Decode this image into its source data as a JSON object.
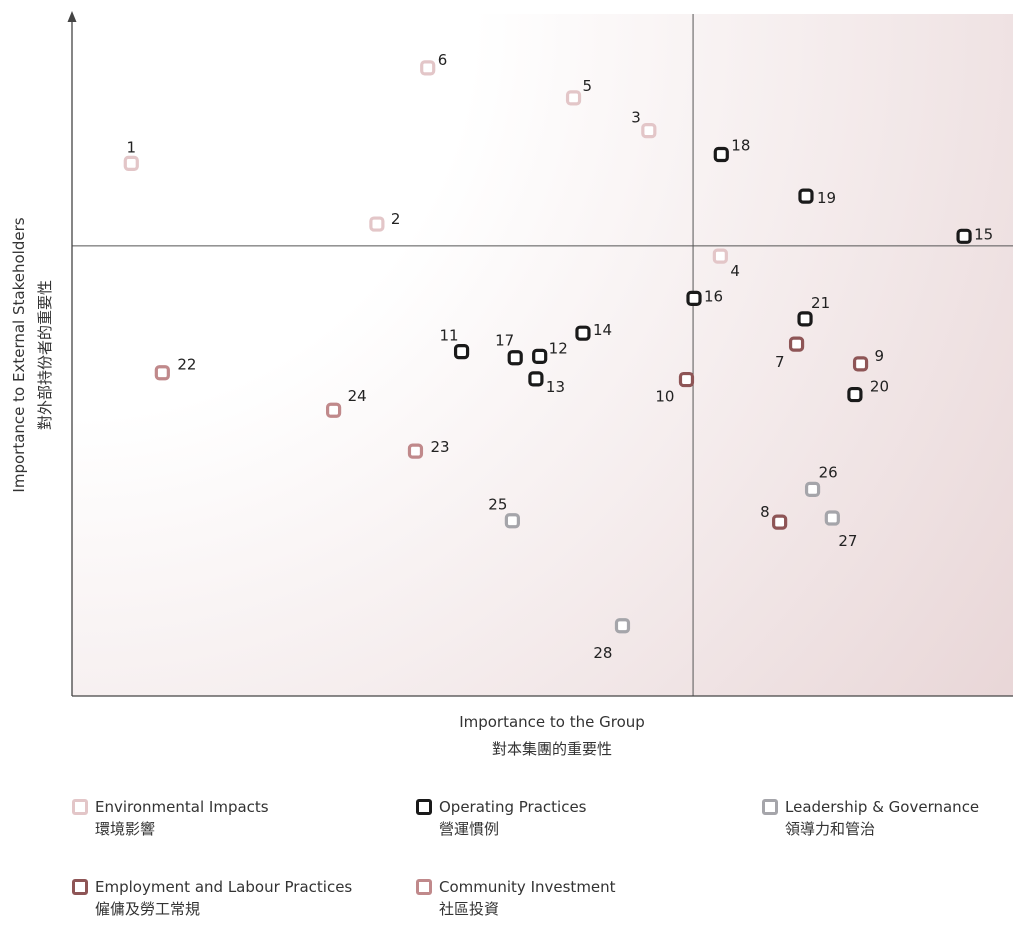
{
  "chart_data": {
    "type": "scatter",
    "xlabel": "Importance to the Group",
    "xlabel_zh": "對本集團的重要性",
    "ylabel": "Importance to External Stakeholders",
    "ylabel_zh": "對外部持份者的重要性",
    "xlim": [
      0,
      100
    ],
    "ylim": [
      0,
      100
    ],
    "quadrant_x": 66,
    "quadrant_y": 66,
    "grid": false,
    "legend_position": "bottom",
    "colors": {
      "environmental": "#e3c6c8",
      "operating": "#1a1a1a",
      "leadership": "#a5a5aa",
      "employment": "#8e5556",
      "community": "#c0898b"
    },
    "series": [
      {
        "id": "environmental",
        "name": "Environmental Impacts",
        "name_zh": "環境影響",
        "color": "#e3c6c8",
        "points": [
          {
            "label": "1",
            "x": 6.3,
            "y": 78.1
          },
          {
            "label": "2",
            "x": 32.4,
            "y": 69.2
          },
          {
            "label": "3",
            "x": 61.3,
            "y": 82.9
          },
          {
            "label": "4",
            "x": 68.9,
            "y": 64.5
          },
          {
            "label": "5",
            "x": 53.3,
            "y": 87.7
          },
          {
            "label": "6",
            "x": 37.8,
            "y": 92.1
          }
        ]
      },
      {
        "id": "operating",
        "name": "Operating Practices",
        "name_zh": "營運慣例",
        "color": "#1a1a1a",
        "points": [
          {
            "label": "11",
            "x": 41.4,
            "y": 50.5
          },
          {
            "label": "12",
            "x": 49.7,
            "y": 49.8
          },
          {
            "label": "13",
            "x": 49.3,
            "y": 46.5
          },
          {
            "label": "14",
            "x": 54.3,
            "y": 53.2
          },
          {
            "label": "15",
            "x": 94.8,
            "y": 67.4
          },
          {
            "label": "16",
            "x": 66.1,
            "y": 58.3
          },
          {
            "label": "17",
            "x": 47.1,
            "y": 49.6
          },
          {
            "label": "18",
            "x": 69.0,
            "y": 79.4
          },
          {
            "label": "19",
            "x": 78.0,
            "y": 73.3
          },
          {
            "label": "20",
            "x": 83.2,
            "y": 44.2
          },
          {
            "label": "21",
            "x": 77.9,
            "y": 55.3
          }
        ]
      },
      {
        "id": "employment",
        "name": "Employment and Labour Practices",
        "name_zh": "僱傭及勞工常規",
        "color": "#8e5556",
        "points": [
          {
            "label": "7",
            "x": 77.0,
            "y": 51.6
          },
          {
            "label": "8",
            "x": 75.2,
            "y": 25.5
          },
          {
            "label": "9",
            "x": 83.8,
            "y": 48.7
          },
          {
            "label": "10",
            "x": 65.3,
            "y": 46.4
          }
        ]
      },
      {
        "id": "community",
        "name": "Community Investment",
        "name_zh": "社區投資",
        "color": "#c0898b",
        "points": [
          {
            "label": "22",
            "x": 9.6,
            "y": 47.4
          },
          {
            "label": "23",
            "x": 36.5,
            "y": 35.9
          },
          {
            "label": "24",
            "x": 27.8,
            "y": 41.9
          }
        ]
      },
      {
        "id": "leadership",
        "name": "Leadership & Governance",
        "name_zh": "領導力和管治",
        "color": "#a5a5aa",
        "points": [
          {
            "label": "25",
            "x": 46.8,
            "y": 25.7
          },
          {
            "label": "26",
            "x": 78.7,
            "y": 30.3
          },
          {
            "label": "27",
            "x": 80.8,
            "y": 26.1
          },
          {
            "label": "28",
            "x": 58.5,
            "y": 10.3
          }
        ]
      }
    ],
    "legend": [
      {
        "id": "environmental",
        "name": "Environmental Impacts",
        "name_zh": "環境影響"
      },
      {
        "id": "operating",
        "name": "Operating Practices",
        "name_zh": "營運慣例"
      },
      {
        "id": "leadership",
        "name": "Leadership & Governance",
        "name_zh": "領導力和管治"
      },
      {
        "id": "employment",
        "name": "Employment and Labour Practices",
        "name_zh": "僱傭及勞工常規"
      },
      {
        "id": "community",
        "name": "Community Investment",
        "name_zh": "社區投資"
      }
    ]
  }
}
